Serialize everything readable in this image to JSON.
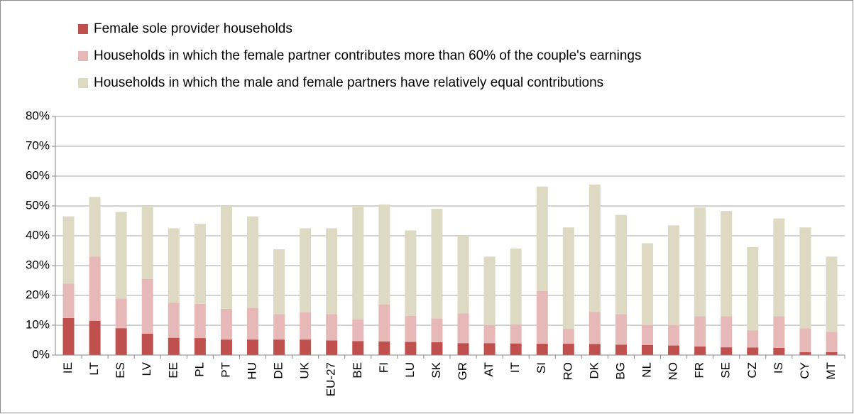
{
  "chart_data": {
    "type": "stacked_bar",
    "categories": [
      "IE",
      "LT",
      "ES",
      "LV",
      "EE",
      "PL",
      "PT",
      "HU",
      "DE",
      "UK",
      "EU-27",
      "BE",
      "FI",
      "LU",
      "SK",
      "GR",
      "AT",
      "IT",
      "SI",
      "RO",
      "DK",
      "BG",
      "NL",
      "NO",
      "FR",
      "SE",
      "CZ",
      "IS",
      "CY",
      "MT"
    ],
    "series": [
      {
        "name": "Female sole provider households",
        "color": "#c0504d",
        "values": [
          12.4,
          11.5,
          9,
          7.2,
          5.8,
          5.7,
          5.2,
          5.2,
          5.2,
          5.2,
          4.9,
          4.7,
          4.6,
          4.4,
          4.3,
          4,
          4,
          3.9,
          3.8,
          3.8,
          3.7,
          3.5,
          3.4,
          3.2,
          2.9,
          2.6,
          2.5,
          2.4,
          1,
          1
        ]
      },
      {
        "name": "Households in which the female partner contributes more than 60% of the couple's earnings",
        "color": "#e6b9b8",
        "values": [
          11.6,
          21.5,
          10,
          18.3,
          11.7,
          11.5,
          10.3,
          10.6,
          8.5,
          9.1,
          8.8,
          7.3,
          12.4,
          8.7,
          8,
          10,
          6,
          6.4,
          17.7,
          5,
          10.8,
          10.2,
          6.6,
          6.8,
          10.1,
          10.4,
          5.8,
          10.6,
          8,
          6.8
        ]
      },
      {
        "name": "Households in which the male and female partners have relatively equal contributions",
        "color": "#ddd9c3",
        "values": [
          22.5,
          20,
          29,
          24.5,
          25,
          26.8,
          34.5,
          30.7,
          21.8,
          28.2,
          28.8,
          38,
          33.5,
          28.7,
          36.7,
          26,
          23,
          25.4,
          35,
          34,
          42.7,
          33.3,
          27.5,
          33.5,
          36.5,
          35.3,
          27.9,
          32.8,
          33.8,
          25.2
        ]
      }
    ],
    "ylim": [
      0,
      80
    ],
    "yticks": [
      {
        "value": 0,
        "label": "0%"
      },
      {
        "value": 10,
        "label": "10%"
      },
      {
        "value": 20,
        "label": "20%"
      },
      {
        "value": 30,
        "label": "30%"
      },
      {
        "value": 40,
        "label": "40%"
      },
      {
        "value": 50,
        "label": "50%"
      },
      {
        "value": 60,
        "label": "60%"
      },
      {
        "value": 70,
        "label": "70%"
      },
      {
        "value": 80,
        "label": "80%"
      }
    ],
    "grid": true
  }
}
